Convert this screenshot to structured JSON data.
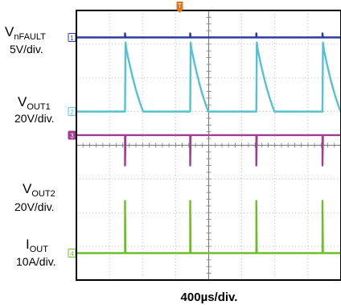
{
  "chart_data": {
    "type": "line",
    "title": "",
    "xlabel": "400µs/div.",
    "trigger_marker": "T",
    "grid": true,
    "x_divisions": 8,
    "y_divisions": 8,
    "series": [
      {
        "channel": "1",
        "name_main": "V",
        "name_sub": "nFAULT",
        "scale": "5V/div.",
        "color": "#2a3d9c",
        "level_div": 7.2,
        "waveform": "flat",
        "glitch_x_div": [
          1.47,
          3.44,
          5.44,
          7.44
        ],
        "glitch_height_div": 0.12
      },
      {
        "channel": "2",
        "name_main": "V",
        "name_sub": "OUT1",
        "scale": "20V/div.",
        "color": "#55c1d4",
        "level_div": 5.0,
        "waveform": "decaying-pulse",
        "pulse_start_x_div": [
          1.47,
          3.44,
          5.44,
          7.44
        ],
        "pulse_peak_div": 7.05,
        "pulse_decay_div": 0.55
      },
      {
        "channel": "3",
        "name_main": "V",
        "name_sub": "OUT2",
        "scale": "20V/div.",
        "color": "#a03c91",
        "level_div": 4.3,
        "waveform": "negative-spike",
        "spike_x_div": [
          1.47,
          3.44,
          5.44,
          7.44
        ],
        "spike_depth_div": 0.9
      },
      {
        "channel": "4",
        "name_main": "I",
        "name_sub": "OUT",
        "scale": "10A/div.",
        "color": "#6cbe2b",
        "level_div": 0.8,
        "waveform": "positive-spike",
        "spike_x_div": [
          1.47,
          3.44,
          5.44,
          7.44
        ],
        "spike_height_div": 1.55
      }
    ]
  }
}
